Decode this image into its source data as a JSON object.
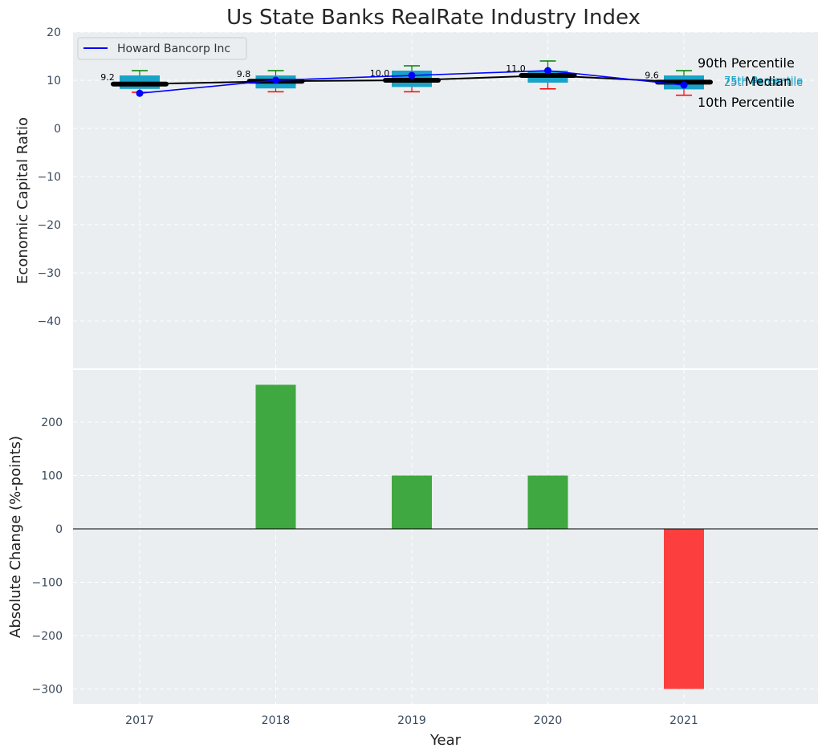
{
  "chart_data": [
    {
      "type": "box",
      "title": "Us State Banks RealRate Industry Index",
      "ylabel": "Economic Capital Ratio",
      "ylim": [
        -50,
        20
      ],
      "yticks": [
        20,
        10,
        0,
        -10,
        -20,
        -30,
        -40
      ],
      "grid": true,
      "legend": {
        "position": "top-left",
        "entries": [
          "Howard Bancorp Inc"
        ]
      },
      "categories": [
        "2017",
        "2018",
        "2019",
        "2020",
        "2021"
      ],
      "distribution": [
        {
          "p10": 7.5,
          "q1": 8.2,
          "median": 9.2,
          "q3": 11.0,
          "p90": 12.0
        },
        {
          "p10": 7.6,
          "q1": 8.3,
          "median": 9.8,
          "q3": 11.0,
          "p90": 12.0
        },
        {
          "p10": 7.6,
          "q1": 8.6,
          "median": 10.0,
          "q3": 12.0,
          "p90": 13.0
        },
        {
          "p10": 8.2,
          "q1": 9.5,
          "median": 11.0,
          "q3": 12.0,
          "p90": 14.0
        },
        {
          "p10": 6.9,
          "q1": 8.1,
          "median": 9.6,
          "q3": 11.0,
          "p90": 12.0
        }
      ],
      "median_labels": [
        "9.2",
        "9.8",
        "10.0",
        "11.0",
        "9.6"
      ],
      "series": [
        {
          "name": "Howard Bancorp Inc",
          "values": [
            7.3,
            10.0,
            11.0,
            12.0,
            9.0
          ],
          "color": "#0000ff"
        }
      ],
      "annotations": {
        "p90": "90th Percentile",
        "median": "Median",
        "p10": "10th Percentile",
        "q3": "75th Percentile",
        "q1": "25th Percentile"
      },
      "colors": {
        "box": "#1aa3c9",
        "median_line": "#000000",
        "upper_whisker": "#008000",
        "lower_whisker": "#ff0000",
        "background": "#eaeef0"
      }
    },
    {
      "type": "bar",
      "xlabel": "Year",
      "ylabel": "Absolute Change (%-points)",
      "categories": [
        "2017",
        "2018",
        "2019",
        "2020",
        "2021"
      ],
      "values": [
        0,
        270,
        100,
        100,
        -300
      ],
      "ylim": [
        -325,
        300
      ],
      "yticks": [
        200,
        100,
        0,
        -100,
        -200,
        -300
      ],
      "grid": true,
      "colors": {
        "positive": "#2ca02c",
        "negative": "#ff2a2a"
      }
    }
  ]
}
